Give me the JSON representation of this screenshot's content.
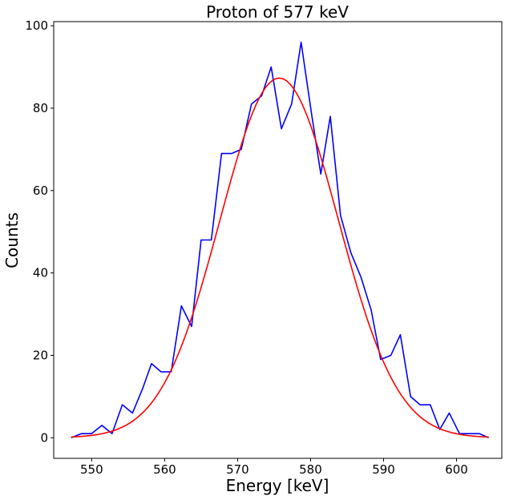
{
  "chart_data": {
    "type": "line",
    "title": "Proton of 577 keV",
    "xlabel": "Energy [keV]",
    "ylabel": "Counts",
    "xlim": [
      544.8,
      606.2
    ],
    "ylim": [
      -5,
      101
    ],
    "xticks": [
      550,
      560,
      570,
      580,
      590,
      600
    ],
    "yticks": [
      0,
      20,
      40,
      60,
      80,
      100
    ],
    "grid": false,
    "series": [
      {
        "color": "#0000ff",
        "x": [
          547.2,
          548.6,
          550.0,
          551.4,
          552.8,
          554.2,
          555.6,
          557.0,
          558.2,
          559.5,
          560.9,
          562.3,
          563.7,
          565.0,
          566.4,
          567.8,
          569.2,
          570.5,
          571.9,
          573.3,
          574.6,
          576.0,
          577.4,
          578.7,
          580.1,
          581.4,
          582.7,
          584.1,
          585.5,
          586.9,
          588.3,
          589.6,
          591.0,
          592.3,
          593.7,
          595.0,
          596.4,
          597.7,
          599.0,
          600.4,
          601.8,
          603.1,
          604.4
        ],
        "y": [
          0,
          1,
          1,
          3,
          1,
          8,
          6,
          12,
          18,
          16,
          16,
          32,
          27,
          48,
          48,
          69,
          69,
          70,
          81,
          83,
          90,
          75,
          81,
          96,
          79,
          64,
          78,
          54,
          45,
          39,
          31,
          19,
          20,
          25,
          10,
          8,
          8,
          2,
          6,
          1,
          1,
          1,
          0
        ]
      },
      {
        "color": "#ff0000",
        "model": "gaussian",
        "amplitude": 87.3,
        "mean": 575.7,
        "sigma": 8.1,
        "x_range": [
          547.2,
          604.4
        ]
      }
    ]
  }
}
